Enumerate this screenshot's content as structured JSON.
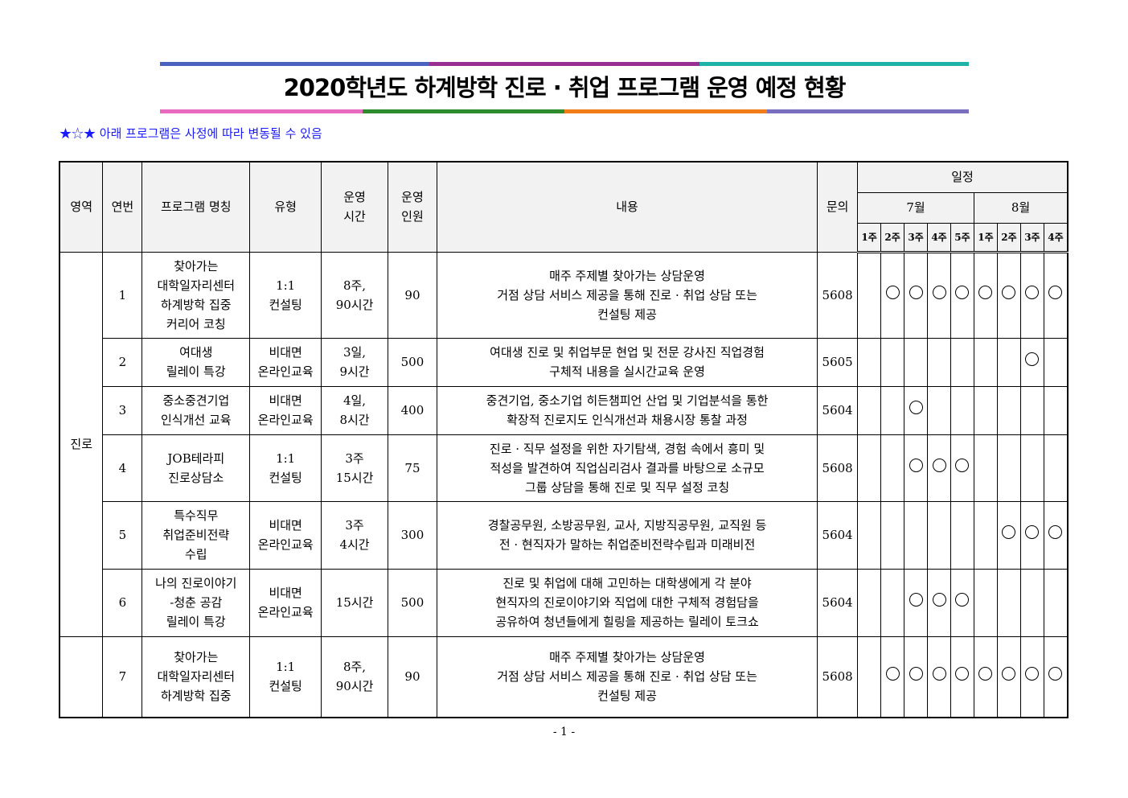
{
  "title": "2020학년도 하계방학 진로 · 취업 프로그램 운영 예정 현황",
  "colors": {
    "top_bar": [
      "#4a63c0",
      "#982f91",
      "#1fb3a8"
    ],
    "bottom_bar": [
      "#e96bbf",
      "#2e8b2e",
      "#f07d1a",
      "#7a6fbf"
    ],
    "notice": "#1a1aff"
  },
  "notice": "★☆★ 아래 프로그램은 사정에 따라 변동될 수 있음",
  "headers": {
    "area": "영역",
    "no": "연번",
    "name": "프로그램 명칭",
    "type": "유형",
    "hours": "운영\n시간",
    "people": "운영\n인원",
    "content": "내용",
    "contact": "문의",
    "schedule": "일정",
    "july": "7월",
    "august": "8월",
    "july_weeks": [
      "1주",
      "2주",
      "3주",
      "4주",
      "5주"
    ],
    "august_weeks": [
      "1주",
      "2주",
      "3주",
      "4주"
    ]
  },
  "area_label": "진로",
  "rows": [
    {
      "no": "1",
      "name": "찾아가는\n대학일자리센터\n하계방학 집중\n커리어 코칭",
      "type": "1:1\n컨설팅",
      "hours": "8주,\n90시간",
      "people": "90",
      "content": "매주 주제별 찾아가는 상담운영\n거점 상담 서비스 제공을 통해 진로 · 취업 상담 또는\n컨설팅 제공",
      "contact": "5608",
      "weeks": [
        0,
        1,
        1,
        1,
        1,
        1,
        1,
        1,
        1
      ]
    },
    {
      "no": "2",
      "name": "여대생\n릴레이 특강",
      "type": "비대면\n온라인교육",
      "hours": "3일,\n9시간",
      "people": "500",
      "content": "여대생 진로 및 취업부문 현업 및 전문 강사진 직업경험\n구체적 내용을 실시간교육 운영",
      "contact": "5605",
      "weeks": [
        0,
        0,
        0,
        0,
        0,
        0,
        0,
        1,
        0
      ]
    },
    {
      "no": "3",
      "name": "중소중견기업\n인식개선 교육",
      "type": "비대면\n온라인교육",
      "hours": "4일,\n8시간",
      "people": "400",
      "content": "중견기업, 중소기업 히든챔피언 산업 및 기업분석을 통한\n확장적 진로지도 인식개선과 채용시장 통찰 과정",
      "contact": "5604",
      "weeks": [
        0,
        0,
        1,
        0,
        0,
        0,
        0,
        0,
        0
      ]
    },
    {
      "no": "4",
      "name": "JOB테라피\n진로상담소",
      "type": "1:1\n컨설팅",
      "hours": "3주\n15시간",
      "people": "75",
      "content": "진로 · 직무 설정을 위한 자기탐색, 경험 속에서 흥미 및\n적성을 발견하여 직업심리검사 결과를 바탕으로 소규모\n그룹 상담을 통해 진로 및 직무 설정 코칭",
      "contact": "5608",
      "weeks": [
        0,
        0,
        1,
        1,
        1,
        0,
        0,
        0,
        0
      ]
    },
    {
      "no": "5",
      "name": "특수직무\n취업준비전략\n수립",
      "type": "비대면\n온라인교육",
      "hours": "3주\n4시간",
      "people": "300",
      "content": "경찰공무원, 소방공무원, 교사, 지방직공무원, 교직원 등\n전 · 현직자가 말하는 취업준비전략수립과 미래비전",
      "contact": "5604",
      "weeks": [
        0,
        0,
        0,
        0,
        0,
        0,
        1,
        1,
        1
      ]
    },
    {
      "no": "6",
      "name": "나의 진로이야기\n-청춘 공감\n릴레이 특강",
      "type": "비대면\n온라인교육",
      "hours": "15시간",
      "people": "500",
      "content": "진로 및 취업에 대해 고민하는 대학생에게 각 분야\n현직자의 진로이야기와 직업에 대한 구체적 경험담을\n공유하여 청년들에게 힐링을 제공하는 릴레이 토크쇼",
      "contact": "5604",
      "weeks": [
        0,
        0,
        1,
        1,
        1,
        0,
        0,
        0,
        0
      ]
    },
    {
      "no": "7",
      "name": "찾아가는\n대학일자리센터\n하계방학 집중",
      "type": "1:1\n컨설팅",
      "hours": "8주,\n90시간",
      "people": "90",
      "content": "매주 주제별 찾아가는 상담운영\n거점 상담 서비스 제공을 통해 진로 · 취업 상담 또는\n컨설팅 제공",
      "contact": "5608",
      "weeks": [
        0,
        1,
        1,
        1,
        1,
        1,
        1,
        1,
        1
      ]
    }
  ],
  "page_number": "- 1 -"
}
